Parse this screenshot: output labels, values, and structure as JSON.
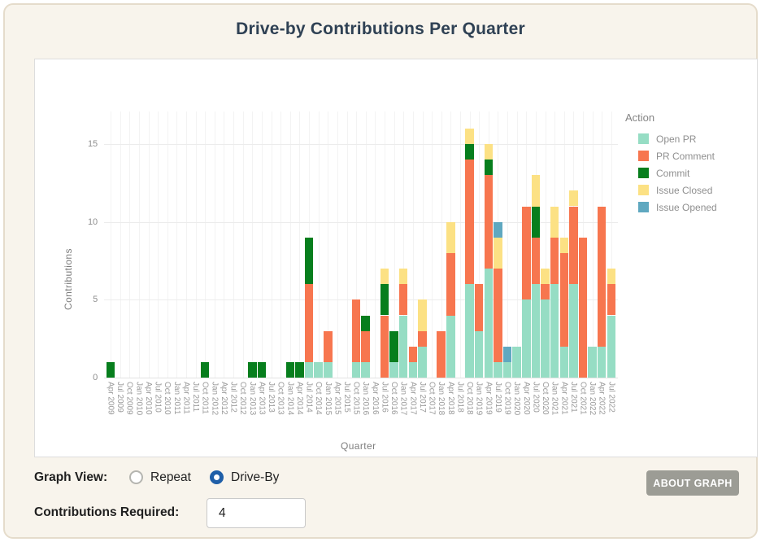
{
  "title": "Drive-by Contributions Per Quarter",
  "controls": {
    "graph_view_label": "Graph View:",
    "radio_repeat_label": "Repeat",
    "radio_driveby_label": "Drive-By",
    "selected_view": "Drive-By",
    "contributions_label": "Contributions Required:",
    "contributions_value": "4",
    "about_button_label": "ABOUT GRAPH"
  },
  "colors": {
    "page_background": "#f8f4ec",
    "card_border": "#e5dccb",
    "title_text": "#2f4154",
    "radio_selected": "#1f5fa8",
    "about_button": "#9c9c95"
  },
  "chart_data": {
    "type": "bar",
    "stacked": true,
    "title": "Drive-by Contributions Per Quarter",
    "xlabel": "Quarter",
    "ylabel": "Contributions",
    "yticks": [
      0,
      5,
      10,
      15
    ],
    "ylim": [
      0,
      17
    ],
    "grid": true,
    "legend_title": "Action",
    "legend_position": "right",
    "categories": [
      "Apr 2009",
      "Jul 2009",
      "Oct 2009",
      "Jan 2010",
      "Apr 2010",
      "Jul 2010",
      "Oct 2010",
      "Jan 2011",
      "Apr 2011",
      "Jul 2011",
      "Oct 2011",
      "Jan 2012",
      "Apr 2012",
      "Jul 2012",
      "Oct 2012",
      "Jan 2013",
      "Apr 2013",
      "Jul 2013",
      "Oct 2013",
      "Jan 2014",
      "Apr 2014",
      "Jul 2014",
      "Oct 2014",
      "Jan 2015",
      "Apr 2015",
      "Jul 2015",
      "Oct 2015",
      "Jan 2016",
      "Apr 2016",
      "Jul 2016",
      "Oct 2016",
      "Jan 2017",
      "Apr 2017",
      "Jul 2017",
      "Oct 2017",
      "Jan 2018",
      "Apr 2018",
      "Jul 2018",
      "Oct 2018",
      "Jan 2019",
      "Apr 2019",
      "Jul 2019",
      "Oct 2019",
      "Jan 2020",
      "Apr 2020",
      "Jul 2020",
      "Oct 2020",
      "Jan 2021",
      "Apr 2021",
      "Jul 2021",
      "Oct 2021",
      "Jan 2022",
      "Apr 2022",
      "Jul 2022"
    ],
    "series": [
      {
        "name": "Open PR",
        "color": "#96ddc4",
        "values": [
          0,
          0,
          0,
          0,
          0,
          0,
          0,
          0,
          0,
          0,
          0,
          0,
          0,
          0,
          0,
          0,
          0,
          0,
          0,
          0,
          0,
          1,
          1,
          1,
          0,
          0,
          1,
          1,
          0,
          0,
          1,
          4,
          1,
          2,
          0,
          0,
          4,
          0,
          6,
          3,
          7,
          1,
          1,
          2,
          5,
          6,
          5,
          6,
          2,
          6,
          0,
          2,
          2,
          4
        ]
      },
      {
        "name": "PR Comment",
        "color": "#f7764f",
        "values": [
          0,
          0,
          0,
          0,
          0,
          0,
          0,
          0,
          0,
          0,
          0,
          0,
          0,
          0,
          0,
          0,
          0,
          0,
          0,
          0,
          0,
          5,
          0,
          2,
          0,
          0,
          4,
          2,
          0,
          4,
          0,
          2,
          1,
          1,
          0,
          3,
          4,
          0,
          8,
          3,
          6,
          6,
          0,
          0,
          6,
          3,
          1,
          3,
          6,
          5,
          9,
          0,
          9,
          2
        ]
      },
      {
        "name": "Commit",
        "color": "#077e1d",
        "values": [
          1,
          0,
          0,
          0,
          0,
          0,
          0,
          0,
          0,
          0,
          1,
          0,
          0,
          0,
          0,
          1,
          1,
          0,
          0,
          1,
          1,
          3,
          0,
          0,
          0,
          0,
          0,
          1,
          0,
          2,
          2,
          0,
          0,
          0,
          0,
          0,
          0,
          0,
          1,
          0,
          1,
          0,
          0,
          0,
          0,
          2,
          0,
          0,
          0,
          0,
          0,
          0,
          0,
          0
        ]
      },
      {
        "name": "Issue Closed",
        "color": "#fce184",
        "values": [
          0,
          0,
          0,
          0,
          0,
          0,
          0,
          0,
          0,
          0,
          0,
          0,
          0,
          0,
          0,
          0,
          0,
          0,
          0,
          0,
          0,
          0,
          0,
          0,
          0,
          0,
          0,
          0,
          0,
          1,
          0,
          1,
          0,
          2,
          0,
          0,
          2,
          0,
          1,
          0,
          1,
          2,
          0,
          0,
          0,
          2,
          1,
          2,
          1,
          1,
          0,
          0,
          0,
          1
        ]
      },
      {
        "name": "Issue Opened",
        "color": "#5fa8c0",
        "values": [
          0,
          0,
          0,
          0,
          0,
          0,
          0,
          0,
          0,
          0,
          0,
          0,
          0,
          0,
          0,
          0,
          0,
          0,
          0,
          0,
          0,
          0,
          0,
          0,
          0,
          0,
          0,
          0,
          0,
          0,
          0,
          0,
          0,
          0,
          0,
          0,
          0,
          0,
          0,
          0,
          0,
          1,
          1,
          0,
          0,
          0,
          0,
          0,
          0,
          0,
          0,
          0,
          0,
          0
        ]
      }
    ]
  }
}
